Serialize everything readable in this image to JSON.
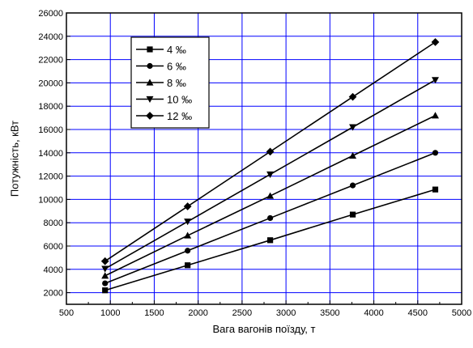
{
  "chart_data": {
    "type": "line",
    "title": "",
    "xlabel": "Вага вагонів поїзду, т",
    "ylabel": "Потужність, кВт",
    "xlim": [
      500,
      5000
    ],
    "ylim": [
      1000,
      26000
    ],
    "x_ticks": [
      500,
      1000,
      1500,
      2000,
      2500,
      3000,
      3500,
      4000,
      4500,
      5000
    ],
    "y_ticks": [
      2000,
      4000,
      6000,
      8000,
      10000,
      12000,
      14000,
      16000,
      18000,
      20000,
      22000,
      24000,
      26000
    ],
    "grid": true,
    "grid_color": "#0000ff",
    "line_color": "#000000",
    "legend_position": "top-left",
    "x": [
      940,
      1880,
      2820,
      3760,
      4700
    ],
    "series": [
      {
        "name": "4 ‰",
        "marker": "square",
        "values": [
          2200,
          4350,
          6500,
          8700,
          10850
        ]
      },
      {
        "name": "6 ‰",
        "marker": "circle",
        "values": [
          2800,
          5600,
          8400,
          11200,
          14000
        ]
      },
      {
        "name": "8 ‰",
        "marker": "triangle-up",
        "values": [
          3450,
          6900,
          10300,
          13750,
          17200
        ]
      },
      {
        "name": "10 ‰",
        "marker": "triangle-down",
        "values": [
          4050,
          8100,
          12150,
          16200,
          20250
        ]
      },
      {
        "name": "12 ‰",
        "marker": "diamond",
        "values": [
          4700,
          9400,
          14100,
          18800,
          23500
        ]
      }
    ]
  }
}
